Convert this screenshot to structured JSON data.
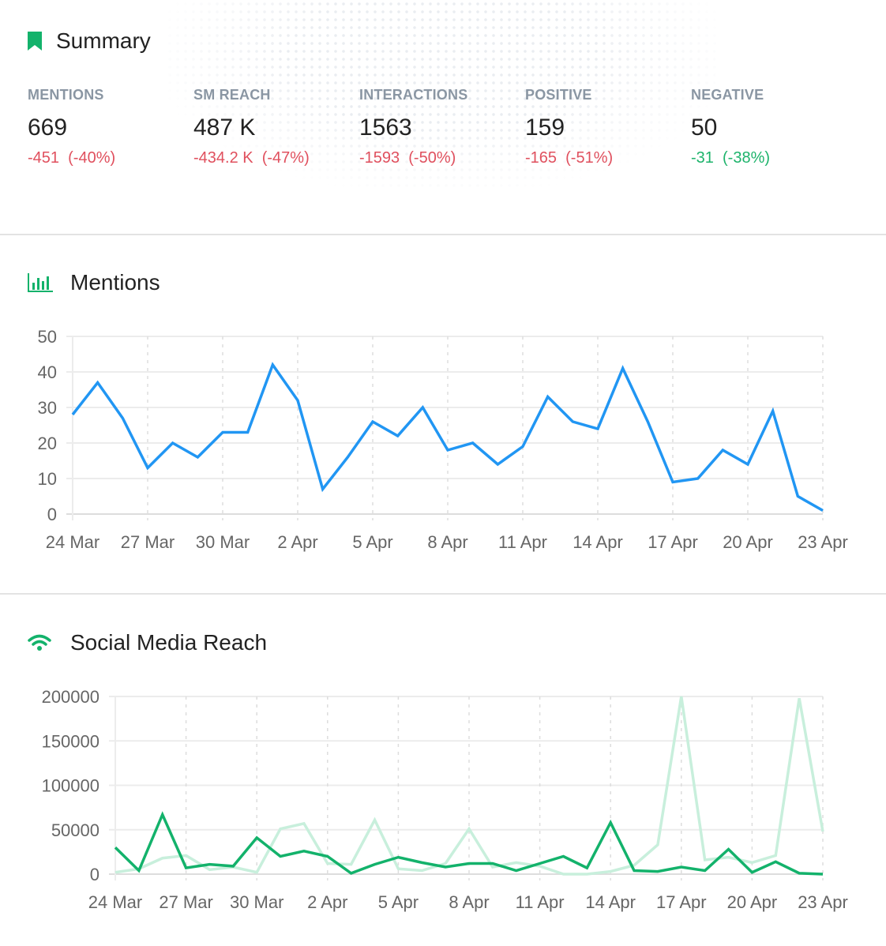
{
  "summary": {
    "title": "Summary",
    "icon": "bookmark-icon",
    "kpis": [
      {
        "label": "MENTIONS",
        "value": "669",
        "change": "-451  (-40%)",
        "trend": "negative"
      },
      {
        "label": "SM REACH",
        "value": "487 K",
        "change": "-434.2 K  (-47%)",
        "trend": "negative"
      },
      {
        "label": "INTERACTIONS",
        "value": "1563",
        "change": "-1593  (-50%)",
        "trend": "negative"
      },
      {
        "label": "POSITIVE",
        "value": "159",
        "change": "-165  (-51%)",
        "trend": "negative"
      },
      {
        "label": "NEGATIVE",
        "value": "50",
        "change": "-31  (-38%)",
        "trend": "positive"
      }
    ]
  },
  "colors": {
    "accent": "#13b26b",
    "negative": "#e0505e",
    "positive": "#1db36b",
    "mentions_line": "#2196f3",
    "reach_line": "#13b26b",
    "reach_prev_line": "#c8efdc"
  },
  "mentions": {
    "title": "Mentions",
    "icon": "bar-chart-icon"
  },
  "reach": {
    "title": "Social Media Reach",
    "icon": "wifi-icon"
  },
  "chart_data": [
    {
      "type": "line",
      "title": "",
      "x": [
        "24 Mar",
        "25 Mar",
        "26 Mar",
        "27 Mar",
        "28 Mar",
        "29 Mar",
        "30 Mar",
        "31 Mar",
        "1 Apr",
        "2 Apr",
        "3 Apr",
        "4 Apr",
        "5 Apr",
        "6 Apr",
        "7 Apr",
        "8 Apr",
        "9 Apr",
        "10 Apr",
        "11 Apr",
        "12 Apr",
        "13 Apr",
        "14 Apr",
        "15 Apr",
        "16 Apr",
        "17 Apr",
        "18 Apr",
        "19 Apr",
        "20 Apr",
        "21 Apr",
        "22 Apr",
        "23 Apr"
      ],
      "x_tick_labels": [
        "24 Mar",
        "27 Mar",
        "30 Mar",
        "2 Apr",
        "5 Apr",
        "8 Apr",
        "11 Apr",
        "14 Apr",
        "17 Apr",
        "20 Apr",
        "23 Apr"
      ],
      "y_tick_labels": [
        "0",
        "10",
        "20",
        "30",
        "40",
        "50"
      ],
      "ylim": [
        0,
        50
      ],
      "grid": true,
      "series": [
        {
          "values": [
            28,
            37,
            27,
            13,
            20,
            16,
            23,
            23,
            42,
            32,
            7,
            16,
            26,
            22,
            30,
            18,
            20,
            14,
            19,
            33,
            26,
            24,
            41,
            26,
            9,
            10,
            18,
            14,
            29,
            5,
            1
          ]
        }
      ]
    },
    {
      "type": "line",
      "title": "",
      "x": [
        "24 Mar",
        "25 Mar",
        "26 Mar",
        "27 Mar",
        "28 Mar",
        "29 Mar",
        "30 Mar",
        "31 Mar",
        "1 Apr",
        "2 Apr",
        "3 Apr",
        "4 Apr",
        "5 Apr",
        "6 Apr",
        "7 Apr",
        "8 Apr",
        "9 Apr",
        "10 Apr",
        "11 Apr",
        "12 Apr",
        "13 Apr",
        "14 Apr",
        "15 Apr",
        "16 Apr",
        "17 Apr",
        "18 Apr",
        "19 Apr",
        "20 Apr",
        "21 Apr",
        "22 Apr",
        "23 Apr"
      ],
      "x_tick_labels": [
        "24 Mar",
        "27 Mar",
        "30 Mar",
        "2 Apr",
        "5 Apr",
        "8 Apr",
        "11 Apr",
        "14 Apr",
        "17 Apr",
        "20 Apr",
        "23 Apr"
      ],
      "y_tick_labels": [
        "0",
        "50000",
        "100000",
        "150000",
        "200000"
      ],
      "ylim": [
        0,
        200000
      ],
      "grid": true,
      "series": [
        {
          "values": [
            2000,
            6000,
            18000,
            21000,
            5000,
            8000,
            2000,
            51000,
            57000,
            12000,
            11000,
            61000,
            6000,
            4000,
            12000,
            51000,
            8000,
            13000,
            9000,
            0,
            0,
            3000,
            10000,
            33000,
            200000,
            16000,
            19000,
            13000,
            21000,
            198000,
            48000
          ]
        },
        {
          "values": [
            30000,
            4000,
            67000,
            7000,
            11000,
            9000,
            41000,
            20000,
            26000,
            20000,
            1000,
            11000,
            19000,
            13000,
            8000,
            12000,
            12000,
            4000,
            12000,
            20000,
            7000,
            58000,
            4000,
            3000,
            8000,
            4000,
            28000,
            2000,
            14000,
            1000,
            0
          ]
        }
      ]
    }
  ]
}
